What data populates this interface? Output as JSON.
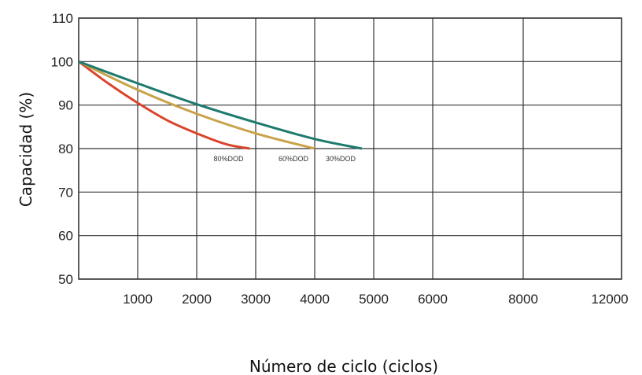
{
  "chart_data": {
    "type": "line",
    "title": "",
    "xlabel": "Número de ciclo (ciclos)",
    "ylabel": "Capacidad (%)",
    "ylim": [
      50,
      110
    ],
    "yticks": [
      50,
      60,
      70,
      80,
      90,
      100,
      110
    ],
    "xtick_labels": [
      "1000",
      "2000",
      "3000",
      "4000",
      "5000",
      "6000",
      "8000",
      "12000"
    ],
    "grid": true,
    "series": [
      {
        "name": "80%DOD",
        "color": "#d9452b",
        "x": [
          0,
          500,
          1000,
          1500,
          2000,
          2500,
          2900
        ],
        "y": [
          100,
          95,
          90.5,
          86.5,
          83.5,
          81,
          80
        ]
      },
      {
        "name": "60%DOD",
        "color": "#c9a24a",
        "x": [
          0,
          1000,
          2000,
          3000,
          4000
        ],
        "y": [
          100,
          93.5,
          88,
          83.5,
          80
        ]
      },
      {
        "name": "30%DOD",
        "color": "#1f7a6e",
        "x": [
          0,
          1000,
          2000,
          3000,
          4000,
          4800
        ],
        "y": [
          100,
          95,
          90.2,
          86,
          82.2,
          80
        ]
      }
    ]
  }
}
